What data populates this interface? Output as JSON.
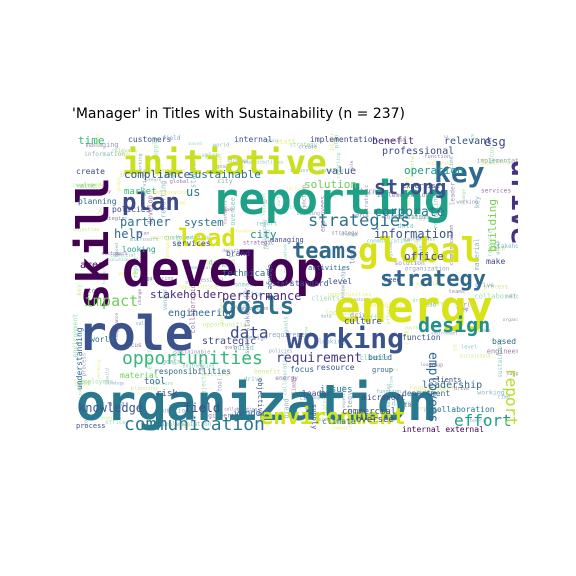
{
  "title": "'Manager' in Titles with Sustainability (n = 237)",
  "palette": {
    "dark_purple": "#440154",
    "purple": "#46327e",
    "blue": "#365c8d",
    "teal": "#277f8e",
    "green": "#1fa187",
    "light_green": "#4ac16d",
    "lime": "#a0da39",
    "yellow": "#d8e219"
  },
  "words": [
    {
      "text": "organization",
      "color": "#2a788e"
    },
    {
      "text": "develop",
      "color": "#440154"
    },
    {
      "text": "reporting",
      "color": "#1fa187"
    },
    {
      "text": "role",
      "color": "#3b528b"
    },
    {
      "text": "energy",
      "color": "#d8e219"
    },
    {
      "text": "skill",
      "color": "#440154"
    },
    {
      "text": "initiative",
      "color": "#c8e020"
    },
    {
      "text": "global",
      "color": "#d8e219"
    },
    {
      "text": "key",
      "color": "#31688e"
    },
    {
      "text": "strategy",
      "color": "#31688e"
    },
    {
      "text": "working",
      "color": "#3b528b"
    },
    {
      "text": "goals",
      "color": "#2c728e"
    },
    {
      "text": "drive",
      "color": "#46327e"
    },
    {
      "text": "environment",
      "color": "#d2e21b"
    },
    {
      "text": "opportunities",
      "color": "#35b779"
    },
    {
      "text": "communication",
      "color": "#2a788e"
    },
    {
      "text": "plan",
      "color": "#3e4989"
    },
    {
      "text": "lead",
      "color": "#d8e219"
    },
    {
      "text": "strong",
      "color": "#3b528b"
    },
    {
      "text": "teams",
      "color": "#31688e"
    },
    {
      "text": "strategies",
      "color": "#2c728e"
    },
    {
      "text": "design",
      "color": "#21918c"
    },
    {
      "text": "impact",
      "color": "#6ece58"
    },
    {
      "text": "data",
      "color": "#3e4989"
    },
    {
      "text": "effort",
      "color": "#1f9e89"
    },
    {
      "text": "report",
      "color": "#b5de2b"
    },
    {
      "text": "employees",
      "color": "#31688e"
    },
    {
      "text": "requirement",
      "color": "#443983"
    },
    {
      "text": "performance",
      "color": "#482878"
    },
    {
      "text": "knowledge",
      "color": "#38598c"
    },
    {
      "text": "field",
      "color": "#3e4989"
    },
    {
      "text": "partner",
      "color": "#2c728e"
    },
    {
      "text": "corporate",
      "color": "#2a788e"
    },
    {
      "text": "information",
      "color": "#3b528b"
    },
    {
      "text": "compliance",
      "color": "#3b528b"
    },
    {
      "text": "sustainable",
      "color": "#2c728e"
    },
    {
      "text": "stakeholder",
      "color": "#482878"
    },
    {
      "text": "solution",
      "color": "#6ece58"
    },
    {
      "text": "building",
      "color": "#7ad151"
    },
    {
      "text": "esg",
      "color": "#3e4989"
    },
    {
      "text": "us",
      "color": "#2a788e"
    },
    {
      "text": "help",
      "color": "#31688e"
    },
    {
      "text": "system",
      "color": "#2c728e"
    },
    {
      "text": "operation",
      "color": "#1f9e89"
    },
    {
      "text": "office",
      "color": "#3e4989"
    },
    {
      "text": "relevant",
      "color": "#3b528b"
    },
    {
      "text": "time",
      "color": "#35b779"
    },
    {
      "text": "engineering",
      "color": "#31688e"
    },
    {
      "text": "area",
      "color": "#440154"
    },
    {
      "text": "value",
      "color": "#3b528b"
    },
    {
      "text": "strategic",
      "color": "#3e4989"
    },
    {
      "text": "leadership",
      "color": "#31688e"
    },
    {
      "text": "benefit",
      "color": "#482878"
    },
    {
      "text": "professional",
      "color": "#3e4989"
    },
    {
      "text": "market",
      "color": "#35b779"
    },
    {
      "text": "city",
      "color": "#21918c"
    },
    {
      "text": "technical",
      "color": "#31688e"
    },
    {
      "text": "culture",
      "color": "#3b528b"
    },
    {
      "text": "vendor",
      "color": "#31688e"
    },
    {
      "text": "tool",
      "color": "#31688e"
    },
    {
      "text": "risk",
      "color": "#3b528b"
    },
    {
      "text": "issues",
      "color": "#26828e"
    },
    {
      "text": "responsibilities",
      "color": "#31688e"
    },
    {
      "text": "commercial",
      "color": "#3b528b"
    },
    {
      "text": "oversee",
      "color": "#3e4989"
    },
    {
      "text": "internal external",
      "color": "#440154"
    },
    {
      "text": "climate",
      "color": "#2c728e"
    },
    {
      "text": "leader",
      "color": "#3b528b"
    },
    {
      "text": "standard",
      "color": "#3b528b"
    },
    {
      "text": "services",
      "color": "#3e4989"
    },
    {
      "text": "planning",
      "color": "#31688e"
    },
    {
      "text": "looking",
      "color": "#1f9e89"
    },
    {
      "text": "policies",
      "color": "#3e4989"
    },
    {
      "text": "world",
      "color": "#2c728e"
    },
    {
      "text": "understanding",
      "color": "#31688e"
    },
    {
      "text": "brand",
      "color": "#3e4989"
    },
    {
      "text": "material",
      "color": "#6ece58"
    },
    {
      "text": "customers",
      "color": "#3b528b"
    },
    {
      "text": "internal",
      "color": "#3b528b"
    },
    {
      "text": "implementation",
      "color": "#3e4989"
    },
    {
      "text": "collaboration",
      "color": "#2a788e"
    },
    {
      "text": "department",
      "color": "#31688e"
    },
    {
      "text": "microsoft",
      "color": "#3e4989"
    },
    {
      "text": "supply chain",
      "color": "#3b528b"
    },
    {
      "text": "expertise",
      "color": "#3e4989"
    },
    {
      "text": "resource",
      "color": "#3b528b"
    },
    {
      "text": "managing",
      "color": "#3e4989"
    },
    {
      "text": "activities",
      "color": "#31688e"
    },
    {
      "text": "level",
      "color": "#3b528b"
    },
    {
      "text": "need",
      "color": "#3b528b"
    },
    {
      "text": "make",
      "color": "#3e4989"
    },
    {
      "text": "based",
      "color": "#31688e"
    },
    {
      "text": "function",
      "color": "#3b528b"
    },
    {
      "text": "focus",
      "color": "#31688e"
    },
    {
      "text": "clients",
      "color": "#3e4989"
    },
    {
      "text": "group",
      "color": "#31688e"
    },
    {
      "text": "objective",
      "color": "#3b528b"
    },
    {
      "text": "create",
      "color": "#3e4989"
    },
    {
      "text": "change",
      "color": "#3b528b"
    },
    {
      "text": "build",
      "color": "#31688e"
    },
    {
      "text": "staff",
      "color": "#3e4989"
    },
    {
      "text": "process",
      "color": "#3b528b"
    }
  ]
}
